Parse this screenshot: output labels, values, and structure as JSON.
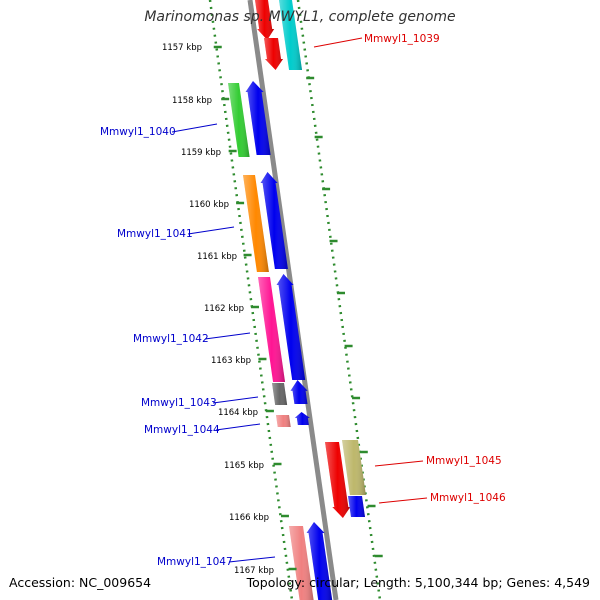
{
  "title": "Marinomonas sp. MWYL1, complete genome",
  "accession": "Accession: NC_009654",
  "topology": "Topology: circular; Length: 5,100,344 bp; Genes: 4,549",
  "colors": {
    "backbone": "#8a8a8a",
    "scale_ticks": "#2e8b2e",
    "forward_label": "#0000cc",
    "reverse_label": "#dd0000",
    "forward_cds": "#0000ee",
    "reverse_cds": "#ee0000"
  },
  "scale_labels": [
    "1157 kbp",
    "1158 kbp",
    "1159 kbp",
    "1160 kbp",
    "1161 kbp",
    "1162 kbp",
    "1163 kbp",
    "1164 kbp",
    "1165 kbp",
    "1166 kbp",
    "1167 kbp"
  ],
  "forward_genes": [
    {
      "label": "Mmwyl1_1040",
      "cog_color": "#33cc33"
    },
    {
      "label": "Mmwyl1_1041",
      "cog_color": "#ff8800"
    },
    {
      "label": "Mmwyl1_1042",
      "cog_color": "#ff1493"
    },
    {
      "label": "Mmwyl1_1043",
      "cog_color": "#666666"
    },
    {
      "label": "Mmwyl1_1044",
      "cog_color": "#f08080"
    },
    {
      "label": "Mmwyl1_1047",
      "cog_color": "#f08080"
    }
  ],
  "reverse_genes": [
    {
      "label": "Mmwyl1_1039",
      "cog_color": "#00cccc"
    },
    {
      "label": "Mmwyl1_1045",
      "cog_color": "#bdb76b"
    },
    {
      "label": "Mmwyl1_1046",
      "cog_color": "#0000ee"
    }
  ]
}
